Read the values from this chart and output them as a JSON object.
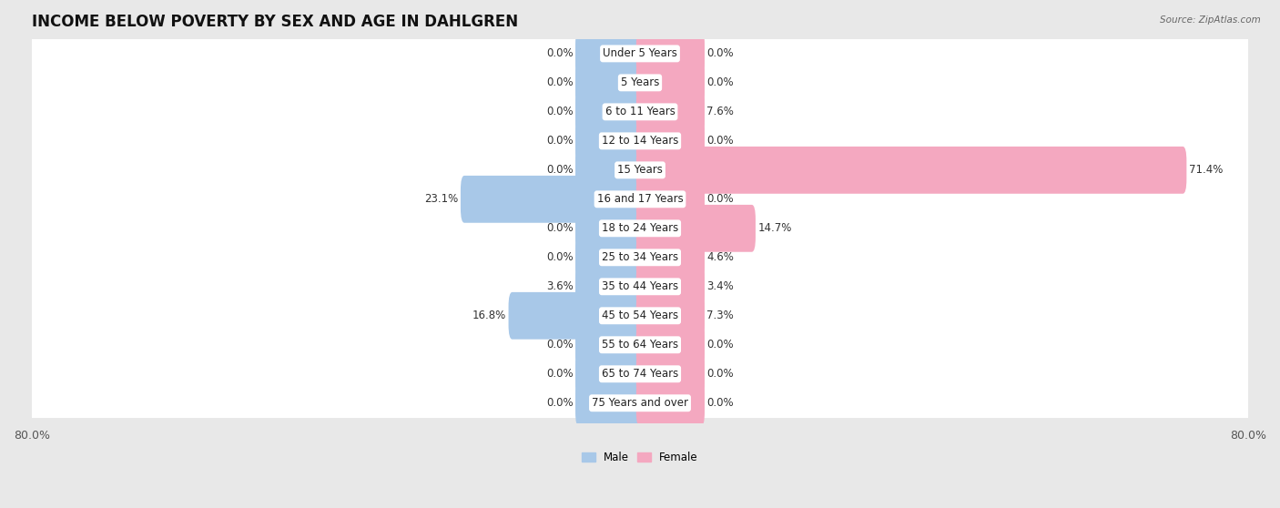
{
  "title": "INCOME BELOW POVERTY BY SEX AND AGE IN DAHLGREN",
  "source": "Source: ZipAtlas.com",
  "categories": [
    "Under 5 Years",
    "5 Years",
    "6 to 11 Years",
    "12 to 14 Years",
    "15 Years",
    "16 and 17 Years",
    "18 to 24 Years",
    "25 to 34 Years",
    "35 to 44 Years",
    "45 to 54 Years",
    "55 to 64 Years",
    "65 to 74 Years",
    "75 Years and over"
  ],
  "male_values": [
    0.0,
    0.0,
    0.0,
    0.0,
    0.0,
    23.1,
    0.0,
    0.0,
    3.6,
    16.8,
    0.0,
    0.0,
    0.0
  ],
  "female_values": [
    0.0,
    0.0,
    7.6,
    0.0,
    71.4,
    0.0,
    14.7,
    4.6,
    3.4,
    7.3,
    0.0,
    0.0,
    0.0
  ],
  "male_color": "#a8c8e8",
  "female_color": "#f4a8c0",
  "axis_limit": 80.0,
  "min_stub": 8.0,
  "background_color": "#e8e8e8",
  "row_color": "#ffffff",
  "title_fontsize": 12,
  "label_fontsize": 8.5,
  "value_fontsize": 8.5,
  "tick_fontsize": 9
}
